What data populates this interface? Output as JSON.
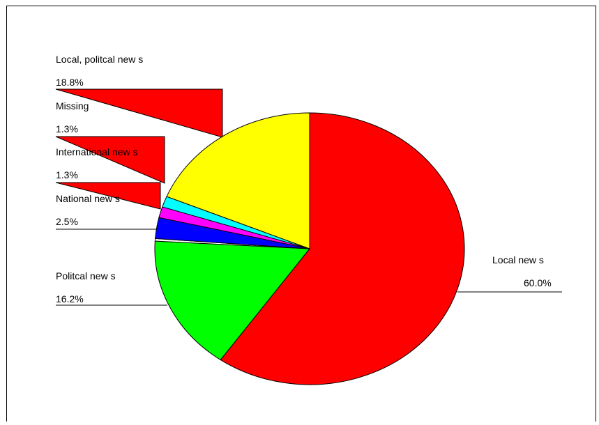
{
  "chart_data": {
    "type": "pie",
    "title": "",
    "slices": [
      {
        "label": "Local new s",
        "value": 60.0,
        "value_label": "60.0%",
        "color": "#ff0000"
      },
      {
        "label": "Politcal new s",
        "value": 16.2,
        "value_label": "16.2%",
        "color": "#00ff00"
      },
      {
        "label": "",
        "value": 0.3,
        "value_label": "",
        "color": "#ffffff"
      },
      {
        "label": "National new s",
        "value": 2.5,
        "value_label": "2.5%",
        "color": "#0000ff"
      },
      {
        "label": "International new s",
        "value": 1.3,
        "value_label": "1.3%",
        "color": "#ff00ff"
      },
      {
        "label": "Missing",
        "value": 1.3,
        "value_label": "1.3%",
        "color": "#00ffff"
      },
      {
        "label": "Local, politcal new s",
        "value": 18.8,
        "value_label": "18.8%",
        "color": "#ffff00"
      }
    ]
  }
}
